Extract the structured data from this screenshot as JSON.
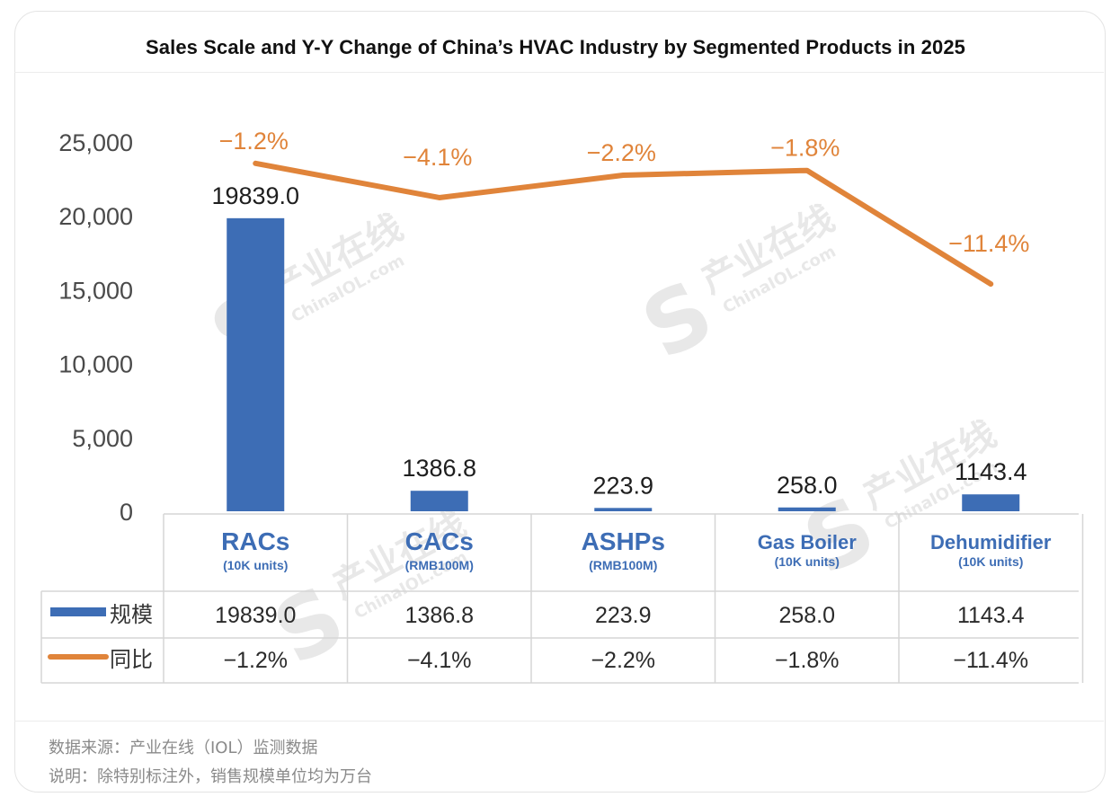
{
  "title": "Sales Scale and Y-Y Change of China’s HVAC Industry by Segmented Products in 2025",
  "chart_data": {
    "type": "bar",
    "categories": [
      {
        "name": "RACs",
        "unit": "(10K units)"
      },
      {
        "name": "CACs",
        "unit": "(RMB100M)"
      },
      {
        "name": "ASHPs",
        "unit": "(RMB100M)"
      },
      {
        "name": "Gas Boiler",
        "unit": "(10K units)"
      },
      {
        "name": "Dehumidifier",
        "unit": "(10K units)"
      }
    ],
    "series": [
      {
        "name": "规模",
        "type": "bar",
        "color": "#3d6db5",
        "values": [
          19839.0,
          1386.8,
          223.9,
          258.0,
          1143.4
        ],
        "labels": [
          "19839.0",
          "1386.8",
          "223.9",
          "258.0",
          "1143.4"
        ]
      },
      {
        "name": "同比",
        "type": "line",
        "color": "#e0843a",
        "values": [
          -1.2,
          -4.1,
          -2.2,
          -1.8,
          -11.4
        ],
        "labels": [
          "-1.2%",
          "-4.1%",
          "-2.2%",
          "-1.8%",
          "-11.4%"
        ]
      }
    ],
    "y_axis": {
      "min": 0,
      "max": 25000,
      "ticks": [
        "0",
        "5,000",
        "10,000",
        "15,000",
        "20,000",
        "25,000"
      ]
    },
    "title": "Sales Scale and Y-Y Change of China’s HVAC Industry by Segmented Products in 2025",
    "data_table": true,
    "legend_placement": "data-table"
  },
  "watermark": {
    "text": "产业在线",
    "sub": "ChinaIOL.com"
  },
  "footer": {
    "source": "数据来源：产业在线（IOL）监测数据",
    "note": "说明：除特别标注外，销售规模单位均为万台"
  }
}
